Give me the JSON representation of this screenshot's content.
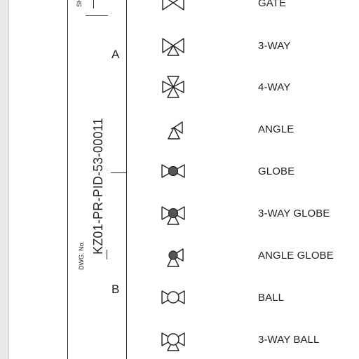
{
  "drawing": {
    "top_label": "SH",
    "dwg_label": "DWG. No.",
    "dwg_number": "KZ01-PR-PID-53-00011",
    "zones": [
      "A",
      "B"
    ]
  },
  "legend": [
    {
      "symbol": "gate-valve-icon",
      "label": "GATE"
    },
    {
      "symbol": "three-way-valve-icon",
      "label": "3-WAY"
    },
    {
      "symbol": "four-way-valve-icon",
      "label": "4-WAY"
    },
    {
      "symbol": "angle-valve-icon",
      "label": "ANGLE"
    },
    {
      "symbol": "globe-valve-icon",
      "label": "GLOBE"
    },
    {
      "symbol": "three-way-globe-valve-icon",
      "label": "3-WAY GLOBE"
    },
    {
      "symbol": "angle-globe-valve-icon",
      "label": "ANGLE GLOBE"
    },
    {
      "symbol": "ball-valve-icon",
      "label": "BALL"
    },
    {
      "symbol": "three-way-ball-valve-icon",
      "label": "3-WAY BALL"
    }
  ]
}
